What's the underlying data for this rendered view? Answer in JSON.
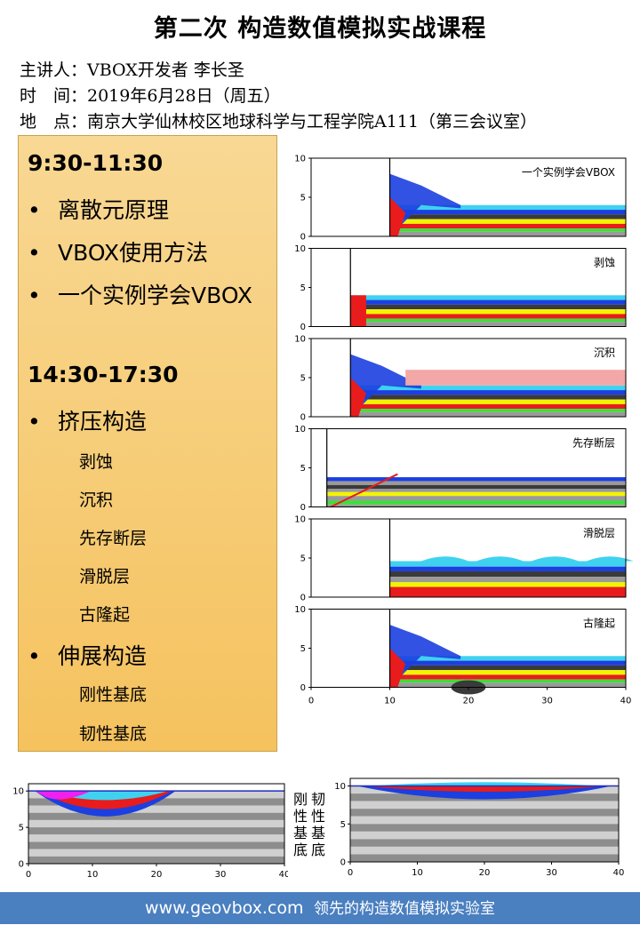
{
  "title": "第二次 构造数值模拟实战课程",
  "info": [
    "主讲人：VBOX开发者 李长圣",
    "时　间：2019年6月28日（周五）",
    "地　点：南京大学仙林校区地球科学与工程学院A111（第三会议室）"
  ],
  "schedule": {
    "morning_time": "9:30-11:30",
    "morning_items": [
      "离散元原理",
      "VBOX使用方法",
      "一个实例学会VBOX"
    ],
    "afternoon_time": "14:30-17:30",
    "compression": "挤压构造",
    "compression_items": [
      "剥蚀",
      "沉积",
      "先存断层",
      "滑脱层",
      "古隆起"
    ],
    "extension": "伸展构造",
    "extension_items": [
      "刚性基底",
      "韧性基底"
    ],
    "bullet_char": "•"
  },
  "panels": [
    {
      "label": "一个实例学会VBOX"
    },
    {
      "label": "剥蚀"
    },
    {
      "label": "沉积"
    },
    {
      "label": "先存断层"
    },
    {
      "label": "滑脱层"
    },
    {
      "label": "古隆起"
    }
  ],
  "panel_y_ticks": [
    "0",
    "5",
    "10"
  ],
  "x_ticks": [
    "0",
    "10",
    "20",
    "30",
    "40"
  ],
  "bottom_left_label": [
    "刚",
    "性",
    "基",
    "底"
  ],
  "bottom_right_label": [
    "韧",
    "性",
    "基",
    "底"
  ],
  "footer": {
    "site": "www.geovbox.com",
    "slogan": "领先的构造数值模拟实验室"
  },
  "colors": {
    "footer_bg": "#4a7fc0",
    "schedule_bg": "#f7cc74",
    "cyan": "#3fd2f0",
    "blue": "#1b3fe0",
    "gray": "#9a9a9a",
    "dark": "#3a3a3a",
    "yellow": "#f4f400",
    "red": "#e81c1c",
    "green": "#3be036",
    "magenta": "#f020f0"
  }
}
